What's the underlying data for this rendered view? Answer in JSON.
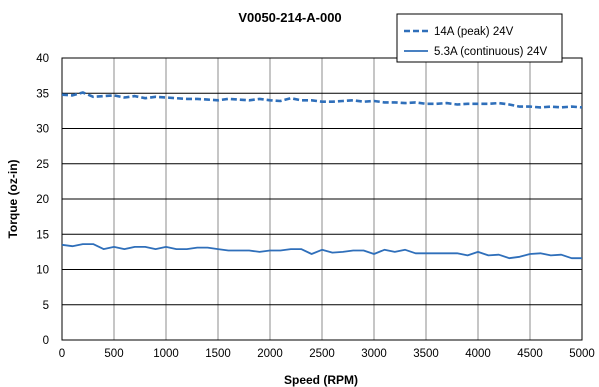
{
  "chart_data": {
    "type": "line",
    "title": "V0050-214-A-000",
    "xlabel": "Speed (RPM)",
    "ylabel": "Torque (oz-in)",
    "xlim": [
      0,
      5000
    ],
    "ylim": [
      0,
      40
    ],
    "x_ticks": [
      "0",
      "500",
      "1000",
      "1500",
      "2000",
      "2500",
      "3000",
      "3500",
      "4000",
      "4500",
      "5000"
    ],
    "y_ticks": [
      "0",
      "5",
      "10",
      "15",
      "20",
      "25",
      "30",
      "35",
      "40"
    ],
    "grid": true,
    "legend_position": "top-right",
    "series": [
      {
        "name": "14A (peak) 24V",
        "style": "dashed",
        "color": "#2f6fba",
        "x": [
          0,
          100,
          200,
          300,
          400,
          500,
          600,
          700,
          800,
          900,
          1000,
          1100,
          1200,
          1300,
          1400,
          1500,
          1600,
          1700,
          1800,
          1900,
          2000,
          2100,
          2200,
          2300,
          2400,
          2500,
          2600,
          2700,
          2800,
          2900,
          3000,
          3100,
          3200,
          3300,
          3400,
          3500,
          3600,
          3700,
          3800,
          3900,
          4000,
          4100,
          4200,
          4300,
          4400,
          4500,
          4600,
          4700,
          4800,
          4900,
          5000
        ],
        "y": [
          34.8,
          34.7,
          35.1,
          34.5,
          34.6,
          34.7,
          34.4,
          34.6,
          34.3,
          34.5,
          34.4,
          34.3,
          34.2,
          34.2,
          34.1,
          34.0,
          34.2,
          34.1,
          34.0,
          34.2,
          34.0,
          33.9,
          34.3,
          34.0,
          34.0,
          33.8,
          33.8,
          33.9,
          34.0,
          33.8,
          33.9,
          33.7,
          33.7,
          33.6,
          33.7,
          33.5,
          33.5,
          33.6,
          33.4,
          33.5,
          33.5,
          33.5,
          33.6,
          33.4,
          33.1,
          33.1,
          33.0,
          33.1,
          33.0,
          33.1,
          33.0
        ]
      },
      {
        "name": "5.3A (continuous) 24V",
        "style": "solid",
        "color": "#2f6fba",
        "x": [
          0,
          100,
          200,
          300,
          400,
          500,
          600,
          700,
          800,
          900,
          1000,
          1100,
          1200,
          1300,
          1400,
          1500,
          1600,
          1700,
          1800,
          1900,
          2000,
          2100,
          2200,
          2300,
          2400,
          2500,
          2600,
          2700,
          2800,
          2900,
          3000,
          3100,
          3200,
          3300,
          3400,
          3500,
          3600,
          3700,
          3800,
          3900,
          4000,
          4100,
          4200,
          4300,
          4400,
          4500,
          4600,
          4700,
          4800,
          4900,
          5000
        ],
        "y": [
          13.5,
          13.3,
          13.6,
          13.6,
          12.9,
          13.2,
          12.9,
          13.2,
          13.2,
          12.9,
          13.2,
          12.9,
          12.9,
          13.1,
          13.1,
          12.9,
          12.7,
          12.7,
          12.7,
          12.5,
          12.7,
          12.7,
          12.9,
          12.9,
          12.2,
          12.8,
          12.4,
          12.5,
          12.7,
          12.7,
          12.2,
          12.8,
          12.5,
          12.8,
          12.3,
          12.3,
          12.3,
          12.3,
          12.3,
          12.0,
          12.5,
          12.0,
          12.1,
          11.6,
          11.8,
          12.2,
          12.3,
          12.0,
          12.1,
          11.6,
          11.6
        ]
      }
    ]
  }
}
